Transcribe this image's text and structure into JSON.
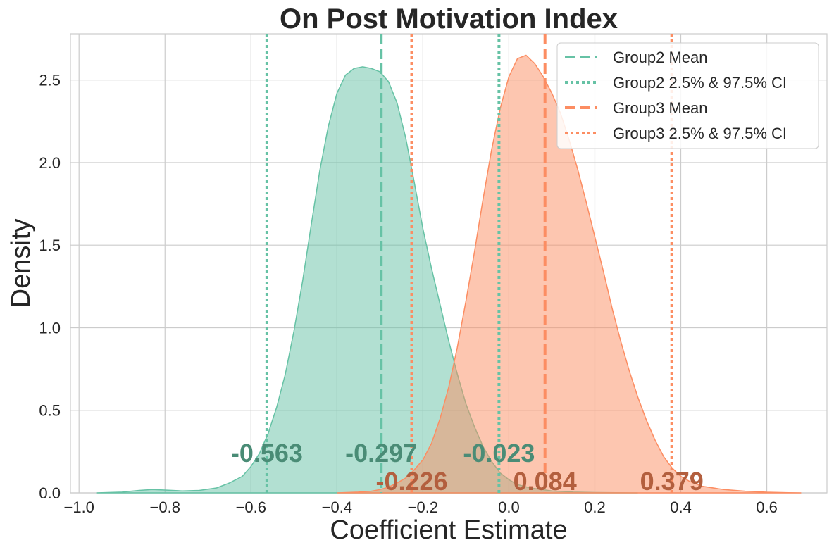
{
  "chart_data": {
    "type": "area",
    "title": "On Post Motivation Index",
    "xlabel": "Coefficient Estimate",
    "ylabel": "Density",
    "xlim": [
      -1.02,
      0.74
    ],
    "ylim": [
      0,
      2.78
    ],
    "xticks": [
      -1.0,
      -0.8,
      -0.6,
      -0.4,
      -0.2,
      0.0,
      0.2,
      0.4,
      0.6
    ],
    "xtick_labels": [
      "−1.0",
      "−0.8",
      "−0.6",
      "−0.4",
      "−0.2",
      "0.0",
      "0.2",
      "0.4",
      "0.6"
    ],
    "yticks": [
      0.0,
      0.5,
      1.0,
      1.5,
      2.0,
      2.5
    ],
    "ytick_labels": [
      "0.0",
      "0.5",
      "1.0",
      "1.5",
      "2.0",
      "2.5"
    ],
    "grid": true,
    "legend_position": "top-right",
    "series": [
      {
        "name": "Group2",
        "color": "#66c2a5",
        "label_color": "#4a8c76",
        "mean": -0.297,
        "ci_low": -0.563,
        "ci_high": -0.023,
        "density": {
          "x": [
            -0.96,
            -0.9,
            -0.86,
            -0.83,
            -0.8,
            -0.76,
            -0.72,
            -0.68,
            -0.65,
            -0.62,
            -0.6,
            -0.58,
            -0.56,
            -0.54,
            -0.52,
            -0.5,
            -0.48,
            -0.46,
            -0.44,
            -0.42,
            -0.4,
            -0.38,
            -0.36,
            -0.34,
            -0.32,
            -0.3,
            -0.28,
            -0.26,
            -0.24,
            -0.22,
            -0.2,
            -0.18,
            -0.16,
            -0.14,
            -0.12,
            -0.1,
            -0.08,
            -0.06,
            -0.04,
            -0.02,
            0.0,
            0.02,
            0.05,
            0.1,
            0.15,
            0.2,
            0.25,
            0.3
          ],
          "y": [
            0.0,
            0.005,
            0.015,
            0.02,
            0.017,
            0.012,
            0.015,
            0.03,
            0.06,
            0.1,
            0.16,
            0.24,
            0.36,
            0.52,
            0.72,
            0.98,
            1.28,
            1.62,
            1.95,
            2.22,
            2.42,
            2.53,
            2.57,
            2.58,
            2.57,
            2.55,
            2.49,
            2.36,
            2.15,
            1.88,
            1.6,
            1.36,
            1.14,
            0.92,
            0.72,
            0.54,
            0.4,
            0.28,
            0.19,
            0.12,
            0.08,
            0.05,
            0.03,
            0.012,
            0.005,
            0.002,
            0.001,
            0.0
          ]
        }
      },
      {
        "name": "Group3",
        "color": "#fc8d62",
        "label_color": "#b35f3e",
        "mean": 0.084,
        "ci_low": -0.226,
        "ci_high": 0.379,
        "density": {
          "x": [
            -0.4,
            -0.35,
            -0.32,
            -0.3,
            -0.28,
            -0.26,
            -0.24,
            -0.22,
            -0.2,
            -0.18,
            -0.16,
            -0.14,
            -0.12,
            -0.1,
            -0.08,
            -0.06,
            -0.04,
            -0.02,
            0.0,
            0.02,
            0.04,
            0.06,
            0.08,
            0.1,
            0.12,
            0.14,
            0.16,
            0.18,
            0.2,
            0.22,
            0.24,
            0.26,
            0.28,
            0.3,
            0.32,
            0.34,
            0.36,
            0.38,
            0.4,
            0.42,
            0.45,
            0.5,
            0.55,
            0.6,
            0.65,
            0.68
          ],
          "y": [
            0.0,
            0.005,
            0.01,
            0.02,
            0.035,
            0.06,
            0.09,
            0.14,
            0.2,
            0.3,
            0.45,
            0.64,
            0.88,
            1.16,
            1.46,
            1.78,
            2.08,
            2.33,
            2.52,
            2.63,
            2.65,
            2.6,
            2.52,
            2.42,
            2.3,
            2.14,
            1.96,
            1.76,
            1.55,
            1.34,
            1.12,
            0.92,
            0.74,
            0.58,
            0.44,
            0.32,
            0.22,
            0.15,
            0.1,
            0.07,
            0.04,
            0.02,
            0.01,
            0.004,
            0.001,
            0.0
          ]
        }
      }
    ],
    "legend_entries": [
      "Group2 Mean",
      "Group2 2.5% & 97.5% CI",
      "Group3 Mean",
      "Group3 2.5% & 97.5% CI"
    ],
    "annotations": {
      "group2": [
        "-0.563",
        "-0.297",
        "-0.023"
      ],
      "group3": [
        "-0.226",
        "0.084",
        "0.379"
      ]
    }
  }
}
